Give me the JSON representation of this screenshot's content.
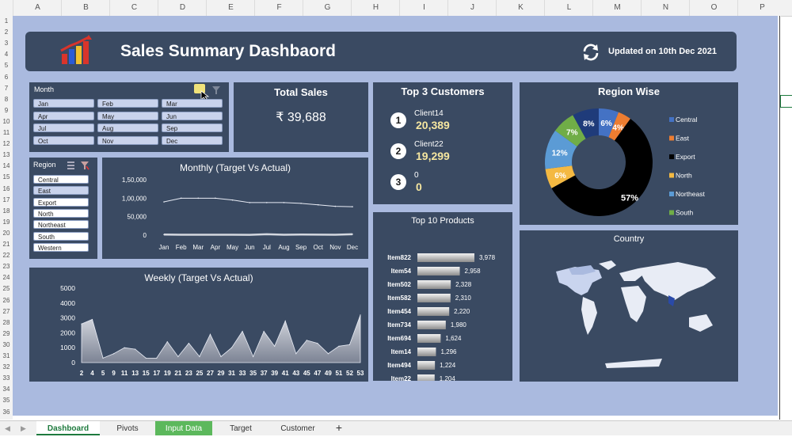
{
  "columns": [
    "A",
    "B",
    "C",
    "D",
    "E",
    "F",
    "G",
    "H",
    "I",
    "J",
    "K",
    "L",
    "M",
    "N",
    "O",
    "P"
  ],
  "rows": [
    "1",
    "2",
    "3",
    "4",
    "5",
    "6",
    "7",
    "8",
    "9",
    "10",
    "11",
    "12",
    "13",
    "14",
    "15",
    "16",
    "17",
    "18",
    "19",
    "20",
    "21",
    "22",
    "23",
    "24",
    "25",
    "26",
    "27",
    "28",
    "29",
    "30",
    "31",
    "32",
    "33",
    "34",
    "35",
    "36"
  ],
  "header": {
    "title": "Sales Summary Dashbaord",
    "updated": "Updated on 10th Dec 2021"
  },
  "month_slicer": {
    "title": "Month",
    "items": [
      "Jan",
      "Feb",
      "Mar",
      "Apr",
      "May",
      "Jun",
      "Jul",
      "Aug",
      "Sep",
      "Oct",
      "Nov",
      "Dec"
    ]
  },
  "total_sales": {
    "title": "Total Sales",
    "value": "₹ 39,688"
  },
  "top_customers": {
    "title": "Top 3 Customers",
    "items": [
      {
        "rank": "1",
        "name": "Client14",
        "value": "20,389"
      },
      {
        "rank": "2",
        "name": "Client22",
        "value": "19,299"
      },
      {
        "rank": "3",
        "name": "0",
        "value": "0"
      }
    ]
  },
  "region_slicer": {
    "title": "Region",
    "items": [
      "Central",
      "East",
      "Export",
      "North",
      "Northeast",
      "South",
      "Western"
    ]
  },
  "monthly": {
    "title": "Monthly (Target Vs Actual)"
  },
  "weekly": {
    "title": "Weekly (Target Vs  Actual)"
  },
  "top_products": {
    "title": "Top 10 Products"
  },
  "region_wise": {
    "title": "Region Wise"
  },
  "country": {
    "title": "Country"
  },
  "tabs": [
    "Dashboard",
    "Pivots",
    "Input Data",
    "Target",
    "Customer",
    "+"
  ],
  "colors": {
    "background": "#aabadf",
    "panel": "#3a4a62",
    "value_yellow": "#f5e6a0",
    "active_tab": "#1e7a3e",
    "input_tab": "#5cb85c"
  },
  "chart_data": [
    {
      "type": "line",
      "title": "Monthly (Target Vs Actual)",
      "categories": [
        "Jan",
        "Feb",
        "Mar",
        "Apr",
        "May",
        "Jun",
        "Jul",
        "Aug",
        "Sep",
        "Oct",
        "Nov",
        "Dec"
      ],
      "series": [
        {
          "values": [
            90000,
            100000,
            100000,
            100000,
            95000,
            88000,
            88000,
            88000,
            86000,
            82000,
            78000,
            77000
          ]
        },
        {
          "values": [
            1500,
            1000,
            1200,
            1200,
            1000,
            900,
            2500,
            1000,
            1500,
            1300,
            1000,
            2500
          ]
        }
      ],
      "ylim": [
        0,
        150000
      ],
      "yticks": [
        "0",
        "50,000",
        "1,00,000",
        "1,50,000"
      ]
    },
    {
      "type": "area",
      "title": "Weekly (Target Vs  Actual)",
      "x": [
        "2",
        "4",
        "5",
        "9",
        "11",
        "13",
        "15",
        "17",
        "19",
        "21",
        "23",
        "25",
        "27",
        "29",
        "31",
        "33",
        "35",
        "37",
        "39",
        "41",
        "43",
        "45",
        "47",
        "49",
        "51",
        "52",
        "53"
      ],
      "values": [
        2600,
        2900,
        300,
        600,
        1000,
        900,
        300,
        300,
        1400,
        400,
        1300,
        400,
        1900,
        400,
        1000,
        2100,
        400,
        2100,
        1100,
        2800,
        600,
        1500,
        1300,
        600,
        1100,
        1200,
        3200
      ],
      "ylim": [
        0,
        5000
      ],
      "yticks": [
        "0",
        "1000",
        "2000",
        "3000",
        "4000",
        "5000"
      ]
    },
    {
      "type": "bar",
      "title": "Top 10 Products",
      "categories": [
        "Item822",
        "Item54",
        "Item502",
        "Item582",
        "Item454",
        "Item734",
        "Item694",
        "Item14",
        "Item494",
        "Item22"
      ],
      "values": [
        3978,
        2958,
        2328,
        2310,
        2220,
        1980,
        1624,
        1296,
        1224,
        1204
      ],
      "labels": [
        "3,978",
        "2,958",
        "2,328",
        "2,310",
        "2,220",
        "1,980",
        "1,624",
        "1,296",
        "1,224",
        "1,204"
      ]
    },
    {
      "type": "pie",
      "title": "Region Wise",
      "categories": [
        "Central",
        "East",
        "Export",
        "North",
        "Northeast",
        "South"
      ],
      "values": [
        6,
        4,
        57,
        6,
        12,
        7
      ],
      "extra_slice": {
        "value": 8,
        "label": "8%"
      },
      "labels": [
        "6%",
        "4%",
        "57%",
        "6%",
        "12%",
        "7%"
      ],
      "colors": [
        "#4472c4",
        "#ed7d31",
        "#000000",
        "#f4b942",
        "#5b9bd5",
        "#70ad47"
      ],
      "extra_color": "#1f3b7a",
      "legend": "right"
    }
  ]
}
